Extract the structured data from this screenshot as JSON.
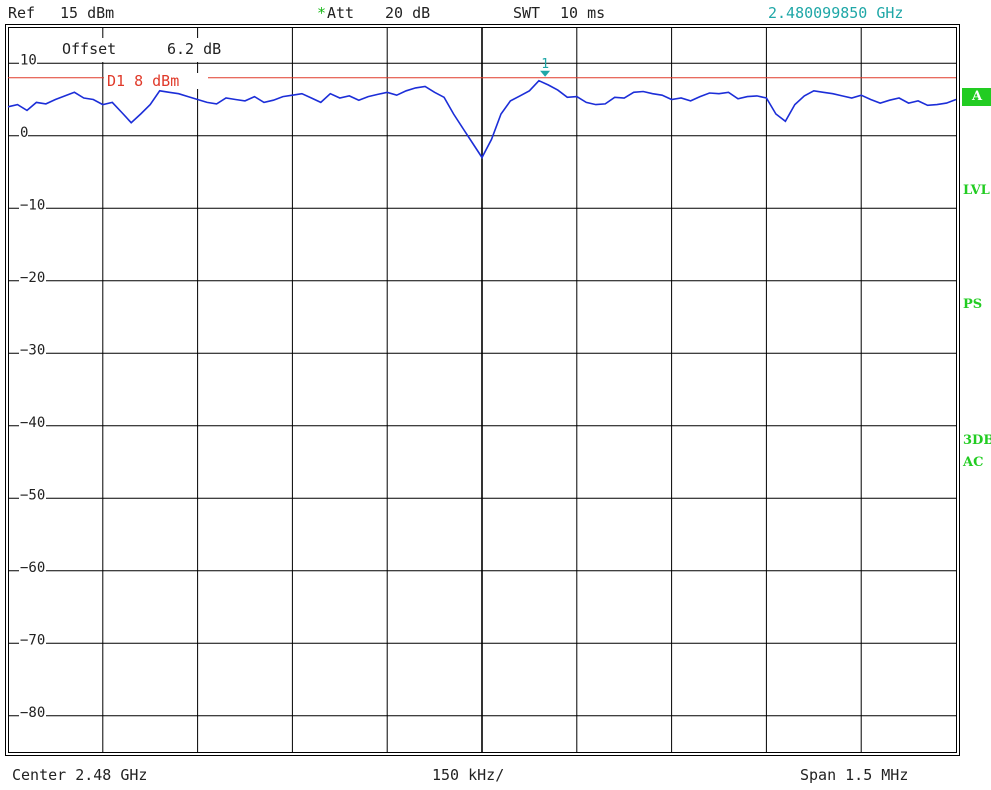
{
  "header": {
    "ref_label": "Ref",
    "ref_value": "15 dBm",
    "att_star": "*",
    "att_label": "Att",
    "att_value": "20 dB",
    "swt_label": "SWT",
    "swt_value": "10 ms",
    "marker_freq": "2.480099850 GHz"
  },
  "plot": {
    "offset_label": "Offset",
    "offset_value": "6.2 dB",
    "display_line_label": "D1 8 dBm",
    "marker_number": "1"
  },
  "footer": {
    "center": "Center 2.48 GHz",
    "div": "150 kHz/",
    "span": "Span 1.5 MHz"
  },
  "side_labels": {
    "trace_mode": "A",
    "detector": "LVL",
    "pre_select": "PS",
    "line1": "3DB",
    "line2": "AC"
  },
  "colors": {
    "trace": "#1c2ed8",
    "display_line": "#e03a2a",
    "marker": "#1fa7a7",
    "grid": "#000000",
    "side_labels": "#22cc22"
  },
  "chart_data": {
    "type": "line",
    "title": "",
    "xlabel": "",
    "ylabel": "",
    "xlim": [
      2.47925,
      2.48075
    ],
    "ylim": [
      -85,
      15
    ],
    "x_unit": "GHz",
    "y_unit": "dBm",
    "y_ticks": [
      10,
      0,
      -10,
      -20,
      -30,
      -40,
      -50,
      -60,
      -70,
      -80
    ],
    "grid": true,
    "display_line": {
      "name": "D1",
      "value": 8
    },
    "marker": {
      "number": 1,
      "x": 2.48009985,
      "y": 8.0
    },
    "series": [
      {
        "x": [
          2.47925,
          2.479265,
          2.47928,
          2.479295,
          2.47931,
          2.479325,
          2.47934,
          2.479355,
          2.47937,
          2.479385,
          2.4794,
          2.479415,
          2.47943,
          2.479445,
          2.47946,
          2.479475,
          2.47949,
          2.479505,
          2.47952,
          2.479535,
          2.47955,
          2.479565,
          2.47958,
          2.479595,
          2.47961,
          2.479625,
          2.47964,
          2.479655,
          2.47967,
          2.479685,
          2.4797,
          2.479715,
          2.47973,
          2.479745,
          2.47976,
          2.479775,
          2.47979,
          2.479805,
          2.47982,
          2.479835,
          2.47985,
          2.479865,
          2.47988,
          2.479895,
          2.47991,
          2.479925,
          2.47994,
          2.479955,
          2.47997,
          2.479985,
          2.48,
          2.480015,
          2.48003,
          2.480045,
          2.48006,
          2.480075,
          2.48009,
          2.480105,
          2.48012,
          2.480135,
          2.48015,
          2.480165,
          2.48018,
          2.480195,
          2.48021,
          2.480225,
          2.48024,
          2.480255,
          2.48027,
          2.480285,
          2.4803,
          2.480315,
          2.48033,
          2.480345,
          2.48036,
          2.480375,
          2.48039,
          2.480405,
          2.48042,
          2.480435,
          2.48045,
          2.480465,
          2.48048,
          2.480495,
          2.48051,
          2.480525,
          2.48054,
          2.480555,
          2.48057,
          2.480585,
          2.4806,
          2.480615,
          2.48063,
          2.480645,
          2.48066,
          2.480675,
          2.48069,
          2.480705,
          2.48072,
          2.480735,
          2.48075
        ],
        "values": [
          4.0,
          4.3,
          3.5,
          4.6,
          4.4,
          5.0,
          5.5,
          6.0,
          5.2,
          5.0,
          4.3,
          4.6,
          3.2,
          1.8,
          3.0,
          4.3,
          6.2,
          6.0,
          5.8,
          5.4,
          5.0,
          4.6,
          4.4,
          5.2,
          5.0,
          4.8,
          5.4,
          4.6,
          4.9,
          5.4,
          5.6,
          5.8,
          5.2,
          4.6,
          5.8,
          5.2,
          5.5,
          4.9,
          5.4,
          5.7,
          6.0,
          5.6,
          6.2,
          6.6,
          6.8,
          6.0,
          5.3,
          3.0,
          1.0,
          -1.0,
          -3.0,
          -0.5,
          3.0,
          4.8,
          5.5,
          6.2,
          7.6,
          7.0,
          6.3,
          5.3,
          5.4,
          4.6,
          4.3,
          4.4,
          5.3,
          5.2,
          6.0,
          6.1,
          5.8,
          5.6,
          5.0,
          5.2,
          4.8,
          5.4,
          5.9,
          5.8,
          6.0,
          5.1,
          5.4,
          5.5,
          5.2,
          3.0,
          2.0,
          4.3,
          5.5,
          6.2,
          6.0,
          5.8,
          5.5,
          5.2,
          5.6,
          5.0,
          4.5,
          4.9,
          5.2,
          4.5,
          4.8,
          4.2,
          4.3,
          4.5,
          5.0
        ]
      }
    ]
  }
}
